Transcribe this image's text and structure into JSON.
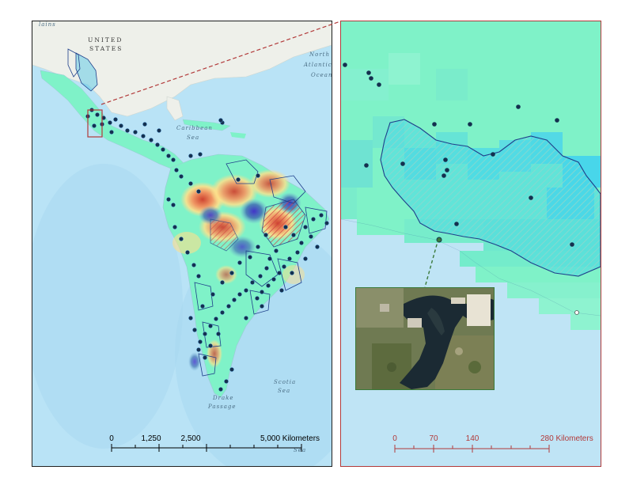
{
  "left_map": {
    "labels": {
      "country": "UNITED",
      "country2": "STATES",
      "north1": "North",
      "north2": "Atlantic",
      "north3": "Ocean",
      "caribbean1": "Caribbean",
      "caribbean2": "Sea",
      "drake1": "Drake",
      "drake2": "Passage",
      "scotia1": "Scotia",
      "scotia2": "Sea",
      "weddell": "Sea",
      "plains": "lains"
    },
    "scale": {
      "ticks": [
        "0",
        "1,250",
        "2,500",
        "5,000 Kilometers"
      ],
      "color": "#000000"
    }
  },
  "right_map": {
    "scale": {
      "ticks": [
        "0",
        "70",
        "140",
        "280 Kilometers"
      ],
      "color": "#b23a3a"
    }
  },
  "colors": {
    "ocean": "#b9e3f6",
    "land_base": "#7ff2c8",
    "boundary": "#1f3f8a",
    "point": "#14304f",
    "callout": "#b23a3a",
    "photo_callout": "#3b7a3b"
  }
}
